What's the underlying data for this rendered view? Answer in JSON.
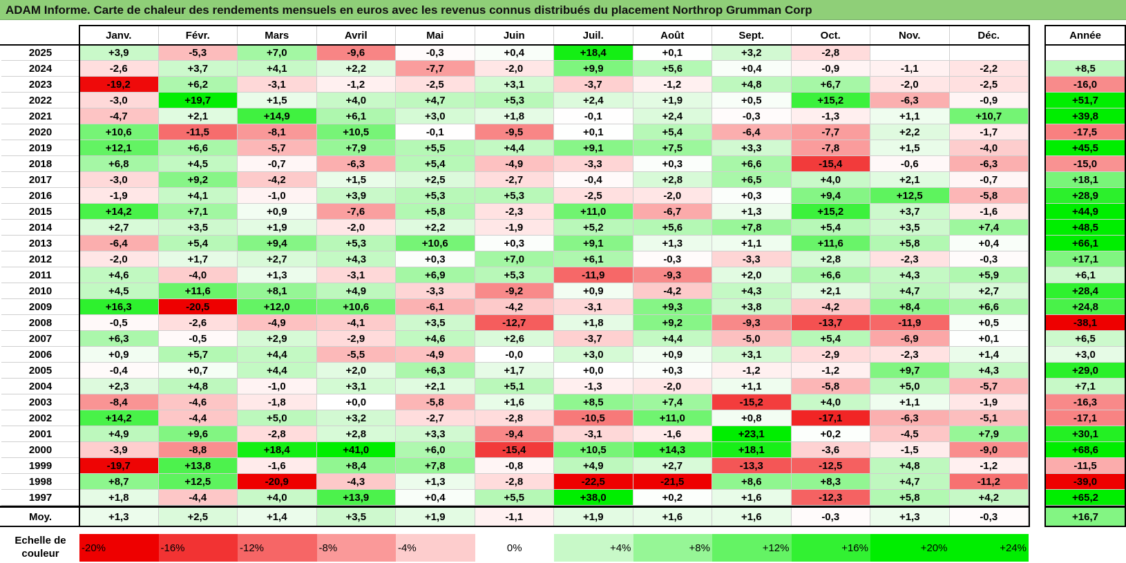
{
  "title": "ADAM Informe. Carte de chaleur des rendements mensuels en euros avec les revenus connus distribués du placement Northrop Grumman Corp",
  "colors": {
    "title_bg": "#8fcf78",
    "max_green": "#00ee00",
    "max_red": "#ee0000",
    "neutral": "#ffffff"
  },
  "chart_data": {
    "type": "heatmap",
    "title": "ADAM Informe. Carte de chaleur des rendements mensuels en euros avec les revenus connus distribués du placement Northrop Grumman Corp",
    "months": [
      "Janv.",
      "Févr.",
      "Mars",
      "Avril",
      "Mai",
      "Juin",
      "Juil.",
      "Août",
      "Sept.",
      "Oct.",
      "Nov.",
      "Déc."
    ],
    "year_header": "Année",
    "rows": [
      {
        "year": "2025",
        "values": [
          "+3,9",
          "-5,3",
          "+7,0",
          "-9,6",
          "-0,3",
          "+0,4",
          "+18,4",
          "+0,1",
          "+3,2",
          "-2,8",
          "",
          ""
        ],
        "annual": ""
      },
      {
        "year": "2024",
        "values": [
          "-2,6",
          "+3,7",
          "+4,1",
          "+2,2",
          "-7,7",
          "-2,0",
          "+9,9",
          "+5,6",
          "+0,4",
          "-0,9",
          "-1,1",
          "-2,2"
        ],
        "annual": "+8,5"
      },
      {
        "year": "2023",
        "values": [
          "-19,2",
          "+6,2",
          "-3,1",
          "-1,2",
          "-2,5",
          "+3,1",
          "-3,7",
          "-1,2",
          "+4,8",
          "+6,7",
          "-2,0",
          "-2,5"
        ],
        "annual": "-16,0"
      },
      {
        "year": "2022",
        "values": [
          "-3,0",
          "+19,7",
          "+1,5",
          "+4,0",
          "+4,7",
          "+5,3",
          "+2,4",
          "+1,9",
          "+0,5",
          "+15,2",
          "-6,3",
          "-0,9"
        ],
        "annual": "+51,7"
      },
      {
        "year": "2021",
        "values": [
          "-4,7",
          "+2,1",
          "+14,9",
          "+6,1",
          "+3,0",
          "+1,8",
          "-0,1",
          "+2,4",
          "-0,3",
          "-1,3",
          "+1,1",
          "+10,7"
        ],
        "annual": "+39,8"
      },
      {
        "year": "2020",
        "values": [
          "+10,6",
          "-11,5",
          "-8,1",
          "+10,5",
          "-0,1",
          "-9,5",
          "+0,1",
          "+5,4",
          "-6,4",
          "-7,7",
          "+2,2",
          "-1,7"
        ],
        "annual": "-17,5"
      },
      {
        "year": "2019",
        "values": [
          "+12,1",
          "+6,6",
          "-5,7",
          "+7,9",
          "+5,5",
          "+4,4",
          "+9,1",
          "+7,5",
          "+3,3",
          "-7,8",
          "+1,5",
          "-4,0"
        ],
        "annual": "+45,5"
      },
      {
        "year": "2018",
        "values": [
          "+6,8",
          "+4,5",
          "-0,7",
          "-6,3",
          "+5,4",
          "-4,9",
          "-3,3",
          "+0,3",
          "+6,6",
          "-15,4",
          "-0,6",
          "-6,3"
        ],
        "annual": "-15,0"
      },
      {
        "year": "2017",
        "values": [
          "-3,0",
          "+9,2",
          "-4,2",
          "+1,5",
          "+2,5",
          "-2,7",
          "-0,4",
          "+2,8",
          "+6,5",
          "+4,0",
          "+2,1",
          "-0,7"
        ],
        "annual": "+18,1"
      },
      {
        "year": "2016",
        "values": [
          "-1,9",
          "+4,1",
          "-1,0",
          "+3,9",
          "+5,3",
          "+5,3",
          "-2,5",
          "-2,0",
          "+0,3",
          "+9,4",
          "+12,5",
          "-5,8"
        ],
        "annual": "+28,9"
      },
      {
        "year": "2015",
        "values": [
          "+14,2",
          "+7,1",
          "+0,9",
          "-7,6",
          "+5,8",
          "-2,3",
          "+11,0",
          "-6,7",
          "+1,3",
          "+15,2",
          "+3,7",
          "-1,6"
        ],
        "annual": "+44,9"
      },
      {
        "year": "2014",
        "values": [
          "+2,7",
          "+3,5",
          "+1,9",
          "-2,0",
          "+2,2",
          "-1,9",
          "+5,2",
          "+5,6",
          "+7,8",
          "+5,4",
          "+3,5",
          "+7,4"
        ],
        "annual": "+48,5"
      },
      {
        "year": "2013",
        "values": [
          "-6,4",
          "+5,4",
          "+9,4",
          "+5,3",
          "+10,6",
          "+0,3",
          "+9,1",
          "+1,3",
          "+1,1",
          "+11,6",
          "+5,8",
          "+0,4"
        ],
        "annual": "+66,1"
      },
      {
        "year": "2012",
        "values": [
          "-2,0",
          "+1,7",
          "+2,7",
          "+4,3",
          "+0,3",
          "+7,0",
          "+6,1",
          "-0,3",
          "-3,3",
          "+2,8",
          "-2,3",
          "-0,3"
        ],
        "annual": "+17,1"
      },
      {
        "year": "2011",
        "values": [
          "+4,6",
          "-4,0",
          "+1,3",
          "-3,1",
          "+6,9",
          "+5,3",
          "-11,9",
          "-9,3",
          "+2,0",
          "+6,6",
          "+4,3",
          "+5,9"
        ],
        "annual": "+6,1"
      },
      {
        "year": "2010",
        "values": [
          "+4,5",
          "+11,6",
          "+8,1",
          "+4,9",
          "-3,3",
          "-9,2",
          "+0,9",
          "-4,2",
          "+4,3",
          "+2,1",
          "+4,7",
          "+2,7"
        ],
        "annual": "+28,4"
      },
      {
        "year": "2009",
        "values": [
          "+16,3",
          "-20,5",
          "+12,0",
          "+10,6",
          "-6,1",
          "-4,2",
          "-3,1",
          "+9,3",
          "+3,8",
          "-4,2",
          "+8,4",
          "+6,6"
        ],
        "annual": "+24,8"
      },
      {
        "year": "2008",
        "values": [
          "-0,5",
          "-2,6",
          "-4,9",
          "-4,1",
          "+3,5",
          "-12,7",
          "+1,8",
          "+9,2",
          "-9,3",
          "-13,7",
          "-11,9",
          "+0,5"
        ],
        "annual": "-38,1"
      },
      {
        "year": "2007",
        "values": [
          "+6,3",
          "-0,5",
          "+2,9",
          "-2,9",
          "+4,6",
          "+2,6",
          "-3,7",
          "+4,4",
          "-5,0",
          "+5,4",
          "-6,9",
          "+0,1"
        ],
        "annual": "+6,5"
      },
      {
        "year": "2006",
        "values": [
          "+0,9",
          "+5,7",
          "+4,4",
          "-5,5",
          "-4,9",
          "-0,0",
          "+3,0",
          "+0,9",
          "+3,1",
          "-2,9",
          "-2,3",
          "+1,4"
        ],
        "annual": "+3,0"
      },
      {
        "year": "2005",
        "values": [
          "-0,4",
          "+0,7",
          "+4,4",
          "+2,0",
          "+6,3",
          "+1,7",
          "+0,0",
          "+0,3",
          "-1,2",
          "-1,2",
          "+9,7",
          "+4,3"
        ],
        "annual": "+29,0"
      },
      {
        "year": "2004",
        "values": [
          "+2,3",
          "+4,8",
          "-1,0",
          "+3,1",
          "+2,1",
          "+5,1",
          "-1,3",
          "-2,0",
          "+1,1",
          "-5,8",
          "+5,0",
          "-5,7"
        ],
        "annual": "+7,1"
      },
      {
        "year": "2003",
        "values": [
          "-8,4",
          "-4,6",
          "-1,8",
          "+0,0",
          "-5,8",
          "+1,6",
          "+8,5",
          "+7,4",
          "-15,2",
          "+4,0",
          "+1,1",
          "-1,9"
        ],
        "annual": "-16,3"
      },
      {
        "year": "2002",
        "values": [
          "+14,2",
          "-4,4",
          "+5,0",
          "+3,2",
          "-2,7",
          "-2,8",
          "-10,5",
          "+11,0",
          "+0,8",
          "-17,1",
          "-6,3",
          "-5,1"
        ],
        "annual": "-17,1"
      },
      {
        "year": "2001",
        "values": [
          "+4,9",
          "+9,6",
          "-2,8",
          "+2,8",
          "+3,3",
          "-9,4",
          "-3,1",
          "-1,6",
          "+23,1",
          "+0,2",
          "-4,5",
          "+7,9"
        ],
        "annual": "+30,1"
      },
      {
        "year": "2000",
        "values": [
          "-3,9",
          "-8,8",
          "+18,4",
          "+41,0",
          "+6,0",
          "-15,4",
          "+10,5",
          "+14,3",
          "+18,1",
          "-3,6",
          "-1,5",
          "-9,0"
        ],
        "annual": "+68,6"
      },
      {
        "year": "1999",
        "values": [
          "-19,7",
          "+13,8",
          "-1,6",
          "+8,4",
          "+7,8",
          "-0,8",
          "+4,9",
          "+2,7",
          "-13,3",
          "-12,5",
          "+4,8",
          "-1,2"
        ],
        "annual": "-11,5"
      },
      {
        "year": "1998",
        "values": [
          "+8,7",
          "+12,5",
          "-20,9",
          "-4,3",
          "+1,3",
          "-2,8",
          "-22,5",
          "-21,5",
          "+8,6",
          "+8,3",
          "+4,7",
          "-11,2"
        ],
        "annual": "-39,0"
      },
      {
        "year": "1997",
        "values": [
          "+1,8",
          "-4,4",
          "+4,0",
          "+13,9",
          "+0,4",
          "+5,5",
          "+38,0",
          "+0,2",
          "+1,6",
          "-12,3",
          "+5,8",
          "+4,2"
        ],
        "annual": "+65,2"
      }
    ],
    "average": {
      "label": "Moy.",
      "values": [
        "+1,3",
        "+2,5",
        "+1,4",
        "+3,5",
        "+1,9",
        "-1,1",
        "+1,9",
        "+1,6",
        "+1,6",
        "-0,3",
        "+1,3",
        "-0,3"
      ],
      "annual": "+16,7"
    },
    "scale": {
      "label": "Echelle de couleur",
      "items": [
        {
          "label": "-20%",
          "value": -20
        },
        {
          "label": "-16%",
          "value": -16
        },
        {
          "label": "-12%",
          "value": -12
        },
        {
          "label": "-8%",
          "value": -8
        },
        {
          "label": "-4%",
          "value": -4
        },
        {
          "label": "0%",
          "value": 0
        },
        {
          "label": "+4%",
          "value": 4
        },
        {
          "label": "+8%",
          "value": 8
        },
        {
          "label": "+12%",
          "value": 12
        },
        {
          "label": "+16%",
          "value": 16
        },
        {
          "label": "+20%",
          "value": 20
        },
        {
          "label": "+24%",
          "value": 24
        }
      ]
    }
  }
}
